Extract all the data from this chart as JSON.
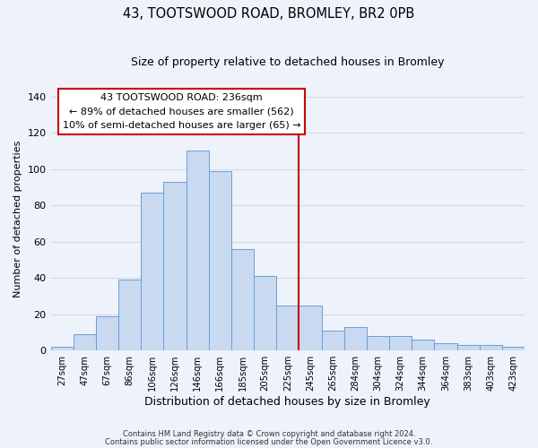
{
  "title": "43, TOOTSWOOD ROAD, BROMLEY, BR2 0PB",
  "subtitle": "Size of property relative to detached houses in Bromley",
  "xlabel": "Distribution of detached houses by size in Bromley",
  "ylabel": "Number of detached properties",
  "bar_labels": [
    "27sqm",
    "47sqm",
    "67sqm",
    "86sqm",
    "106sqm",
    "126sqm",
    "146sqm",
    "166sqm",
    "185sqm",
    "205sqm",
    "225sqm",
    "245sqm",
    "265sqm",
    "284sqm",
    "304sqm",
    "324sqm",
    "344sqm",
    "364sqm",
    "383sqm",
    "403sqm",
    "423sqm"
  ],
  "bar_values": [
    2,
    9,
    19,
    39,
    87,
    93,
    110,
    99,
    56,
    41,
    25,
    25,
    11,
    13,
    8,
    8,
    6,
    4,
    3,
    3,
    2
  ],
  "bar_color": "#c8d9f0",
  "bar_edge_color": "#6a9fd8",
  "vline_x_index": 11,
  "vline_color": "#cc0000",
  "annotation_title": "43 TOOTSWOOD ROAD: 236sqm",
  "annotation_line1": "← 89% of detached houses are smaller (562)",
  "annotation_line2": "10% of semi-detached houses are larger (65) →",
  "annotation_box_color": "#ffffff",
  "annotation_box_edge": "#cc0000",
  "ylim": [
    0,
    145
  ],
  "yticks": [
    0,
    20,
    40,
    60,
    80,
    100,
    120,
    140
  ],
  "footer1": "Contains HM Land Registry data © Crown copyright and database right 2024.",
  "footer2": "Contains public sector information licensed under the Open Government Licence v3.0.",
  "background_color": "#eef2fa",
  "grid_color": "#d0d8e8",
  "title_fontsize": 10.5,
  "subtitle_fontsize": 9
}
